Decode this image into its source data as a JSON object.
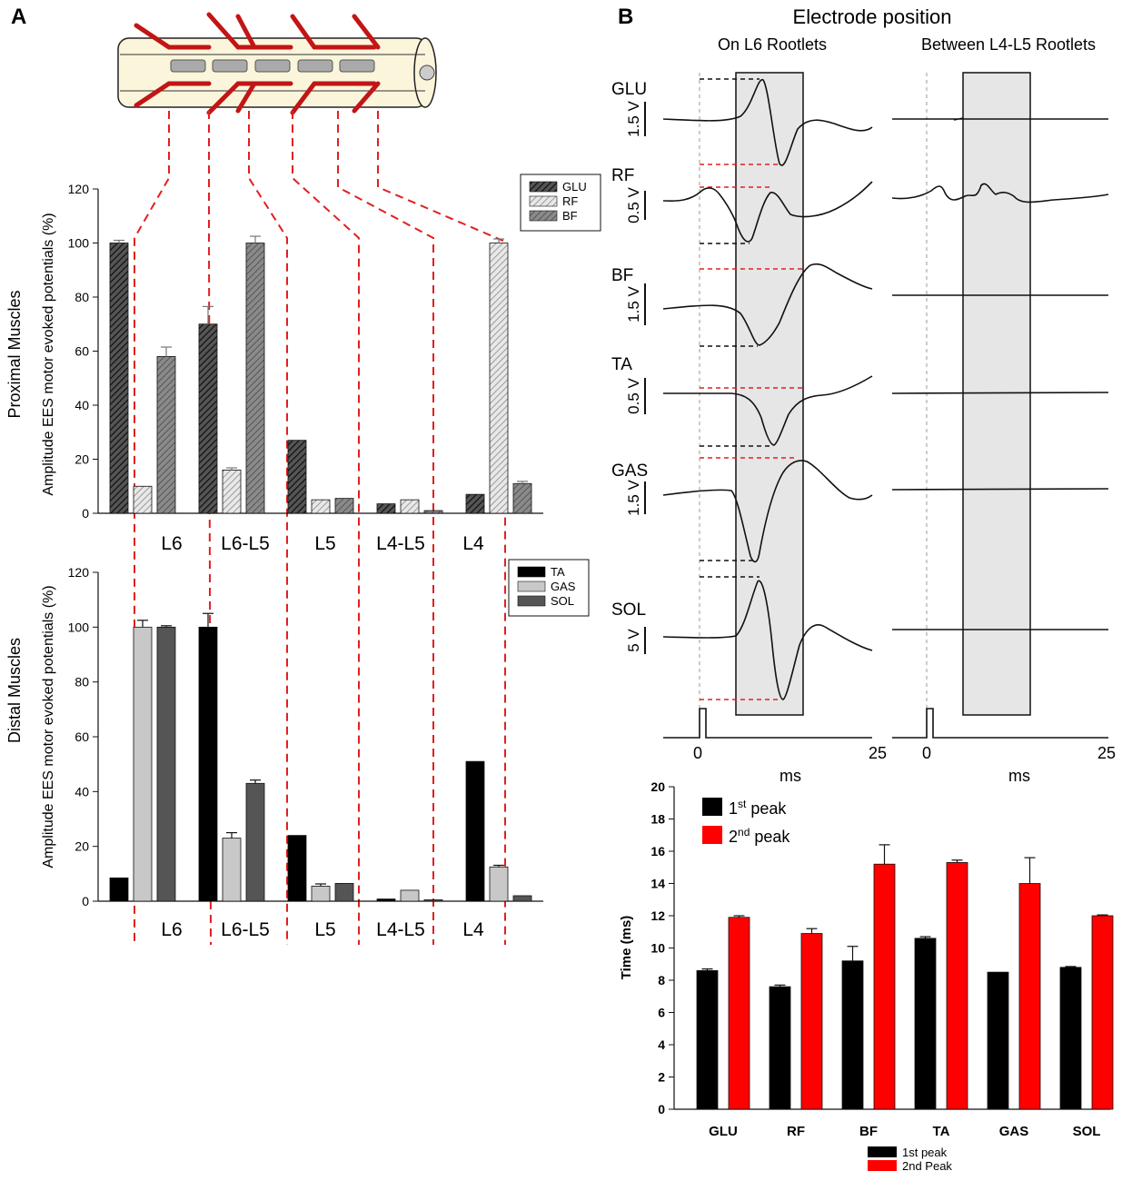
{
  "panels": {
    "a": "A",
    "b": "B"
  },
  "colors": {
    "red": "#cc1111",
    "dashRed": "#e02020",
    "black": "#111111",
    "shade": "#e6e6e6",
    "cord": "#fbf5dc"
  },
  "chart_data": [
    {
      "id": "proximal",
      "type": "bar",
      "ylabel": "Amplitude EES motor evoked potentials (%)",
      "side_label": "Proximal Muscles",
      "categories": [
        "L6",
        "L6-L5",
        "L5",
        "L4-L5",
        "L4"
      ],
      "ylim": [
        0,
        120
      ],
      "yticks": [
        0,
        20,
        40,
        60,
        80,
        100,
        120
      ],
      "legend_position": "top-right",
      "series": [
        {
          "name": "GLU",
          "values": [
            100,
            70,
            27,
            3.5,
            7
          ],
          "errors": [
            1,
            6.5,
            0,
            0,
            0
          ]
        },
        {
          "name": "RF",
          "values": [
            10,
            16,
            5,
            5,
            100
          ],
          "errors": [
            0,
            0.8,
            0,
            0,
            1.5
          ]
        },
        {
          "name": "BF",
          "values": [
            58,
            100,
            5.5,
            1,
            11
          ],
          "errors": [
            3.5,
            2.5,
            0,
            0,
            0.8
          ]
        }
      ]
    },
    {
      "id": "distal",
      "type": "bar",
      "ylabel": "Amplitude EES motor evoked potentials (%)",
      "side_label": "Distal Muscles",
      "categories": [
        "L6",
        "L6-L5",
        "L5",
        "L4-L5",
        "L4"
      ],
      "ylim": [
        0,
        120
      ],
      "yticks": [
        0,
        20,
        40,
        60,
        80,
        100,
        120
      ],
      "legend_position": "top-right",
      "series": [
        {
          "name": "TA",
          "values": [
            8.5,
            100,
            24,
            0.8,
            51
          ],
          "errors": [
            0,
            5,
            0,
            0,
            0
          ]
        },
        {
          "name": "GAS",
          "values": [
            100,
            23,
            5.5,
            4,
            12.5
          ],
          "errors": [
            2.5,
            2,
            0.8,
            0,
            0.6
          ]
        },
        {
          "name": "SOL",
          "values": [
            100,
            43,
            6.5,
            0.5,
            2
          ],
          "errors": [
            0.5,
            1.2,
            0,
            0,
            0
          ]
        }
      ]
    },
    {
      "id": "latency",
      "type": "bar",
      "ylabel": "Time (ms)",
      "categories": [
        "GLU",
        "RF",
        "BF",
        "TA",
        "GAS",
        "SOL"
      ],
      "ylim": [
        0,
        20
      ],
      "yticks": [
        0,
        2,
        4,
        6,
        8,
        10,
        12,
        14,
        16,
        18,
        20
      ],
      "series": [
        {
          "name": "1st peak",
          "values": [
            8.6,
            7.6,
            9.2,
            10.6,
            8.5,
            8.8
          ],
          "errors": [
            0.1,
            0.1,
            0.9,
            0.1,
            0,
            0.05
          ]
        },
        {
          "name": "2nd Peak",
          "values": [
            11.9,
            10.9,
            15.2,
            15.3,
            14.0,
            12.0
          ],
          "errors": [
            0.1,
            0.3,
            1.2,
            0.15,
            1.6,
            0.05
          ]
        }
      ],
      "legend_top": {
        "first": "1",
        "first_sup": "st",
        "second": "2",
        "second_sup": "nd",
        "word": " peak"
      },
      "legend_bottom": [
        "1st peak",
        "2nd Peak"
      ]
    }
  ],
  "traces": {
    "title": "Electrode position",
    "col1_title": "On  L6 Rootlets",
    "col2_title": "Between  L4-L5 Rootlets",
    "muscles": [
      {
        "name": "GLU",
        "scale": "1.5 V"
      },
      {
        "name": "RF",
        "scale": "0.5 V"
      },
      {
        "name": "BF",
        "scale": "1.5 V"
      },
      {
        "name": "TA",
        "scale": "0.5 V"
      },
      {
        "name": "GAS",
        "scale": "1.5 V"
      },
      {
        "name": "SOL",
        "scale": "5 V"
      }
    ],
    "xaxis": {
      "start": "0",
      "end": "25",
      "unit": "ms"
    }
  }
}
